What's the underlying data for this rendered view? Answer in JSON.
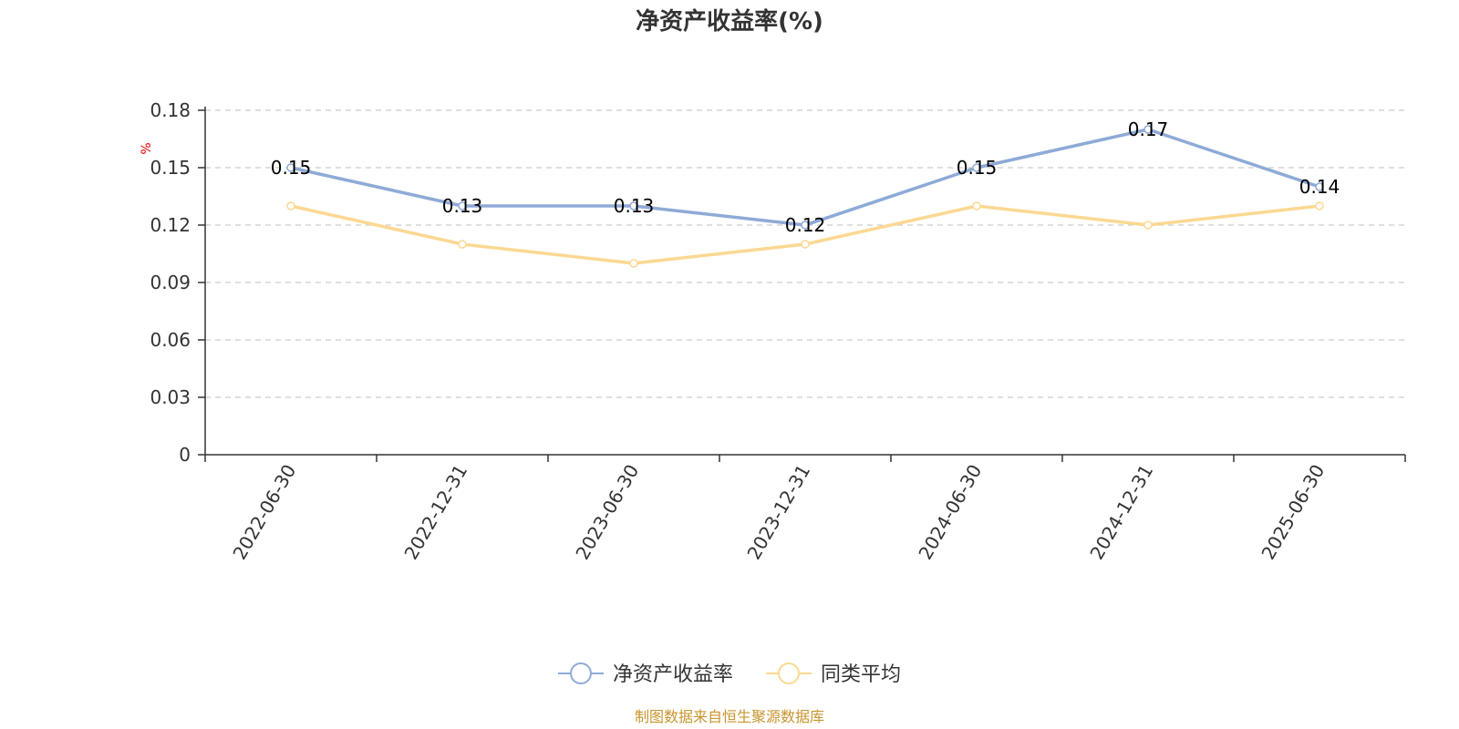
{
  "title": "净资产收益率(%)",
  "source": "制图数据来自恒生聚源数据库",
  "chart_data": {
    "type": "line",
    "title": "净资产收益率(%)",
    "ylabel": "%",
    "categories": [
      "2022-06-30",
      "2022-12-31",
      "2023-06-30",
      "2023-12-31",
      "2024-06-30",
      "2024-12-31",
      "2025-06-30"
    ],
    "ylim": [
      0,
      0.18
    ],
    "yticks": [
      "0",
      "0.03",
      "0.06",
      "0.09",
      "0.12",
      "0.15",
      "0.18"
    ],
    "grid": true,
    "legend_position": "bottom-center",
    "series": [
      {
        "name": "净资产收益率",
        "values": [
          0.15,
          0.13,
          0.13,
          0.12,
          0.15,
          0.17,
          0.14
        ],
        "color": "#8eaad6",
        "show_labels": true
      },
      {
        "name": "同类平均",
        "values": [
          0.13,
          0.11,
          0.1,
          0.11,
          0.13,
          0.12,
          0.13
        ],
        "color": "#fbd892",
        "show_labels": false
      }
    ]
  }
}
